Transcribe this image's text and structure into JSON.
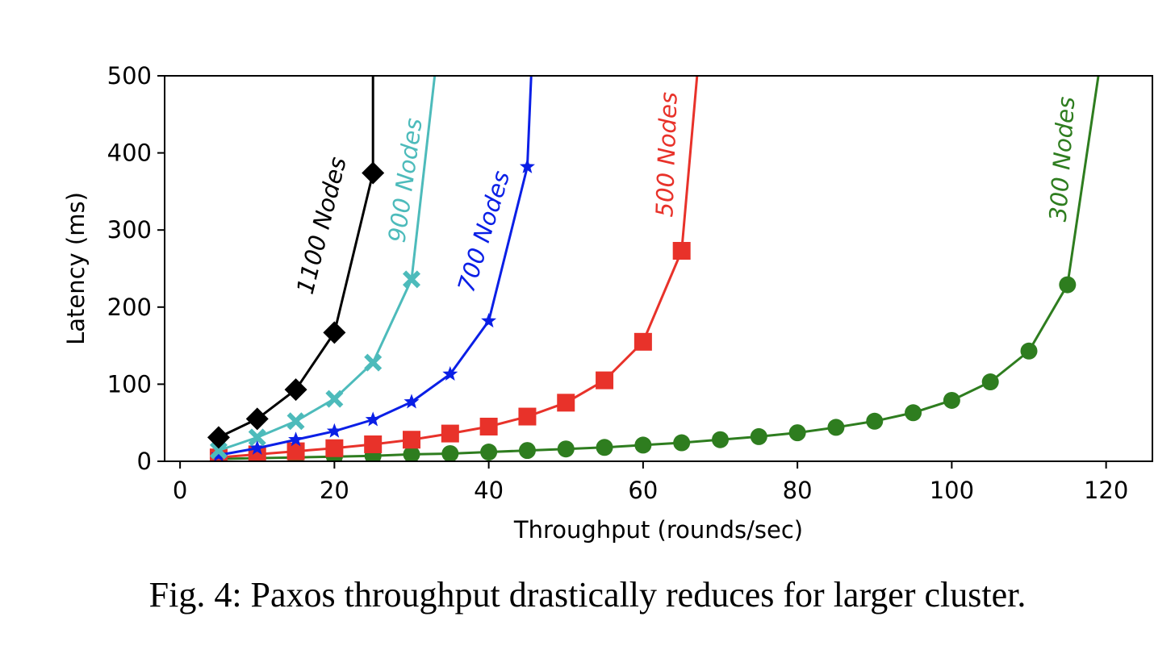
{
  "caption": "Fig. 4: Paxos throughput drastically reduces for larger cluster.",
  "chart_data": {
    "type": "line",
    "xlabel": "Throughput (rounds/sec)",
    "ylabel": "Latency (ms)",
    "xlim": [
      -2,
      126
    ],
    "ylim": [
      0,
      500
    ],
    "xticks": [
      0,
      20,
      40,
      60,
      80,
      100,
      120
    ],
    "yticks": [
      0,
      100,
      200,
      300,
      400,
      500
    ],
    "grid": false,
    "legend": "none",
    "series": [
      {
        "name": "1100 Nodes",
        "color": "#000000",
        "marker": "diamond",
        "x": [
          5,
          10,
          15,
          20,
          25
        ],
        "y": [
          31,
          55,
          93,
          167,
          374
        ],
        "tail": [
          [
            25,
            374
          ],
          [
            25,
            500
          ]
        ]
      },
      {
        "name": "900 Nodes",
        "color": "#4dbbbb",
        "marker": "x",
        "x": [
          5,
          10,
          15,
          20,
          25,
          30
        ],
        "y": [
          14,
          31,
          52,
          81,
          128,
          236
        ],
        "tail": [
          [
            30,
            236
          ],
          [
            33,
            500
          ]
        ]
      },
      {
        "name": "700 Nodes",
        "color": "#0a1fe6",
        "marker": "star",
        "x": [
          5,
          10,
          15,
          20,
          25,
          30,
          35,
          40,
          45
        ],
        "y": [
          8,
          17,
          28,
          39,
          54,
          77,
          113,
          182,
          382
        ],
        "tail": [
          [
            45,
            382
          ],
          [
            45.5,
            500
          ]
        ]
      },
      {
        "name": "500 Nodes",
        "color": "#e8322a",
        "marker": "square",
        "x": [
          5,
          10,
          15,
          20,
          25,
          30,
          35,
          40,
          45,
          50,
          55,
          60,
          65
        ],
        "y": [
          5,
          9,
          13,
          17,
          22,
          28,
          36,
          45,
          58,
          76,
          105,
          155,
          273
        ],
        "tail": [
          [
            65,
            273
          ],
          [
            67,
            500
          ]
        ]
      },
      {
        "name": "300 Nodes",
        "color": "#2e7d1f",
        "marker": "circle",
        "x": [
          5,
          10,
          15,
          20,
          25,
          30,
          35,
          40,
          45,
          50,
          55,
          60,
          65,
          70,
          75,
          80,
          85,
          90,
          95,
          100,
          105,
          110,
          115
        ],
        "y": [
          3,
          4,
          5,
          6,
          7,
          9,
          10,
          12,
          14,
          16,
          18,
          21,
          24,
          28,
          32,
          37,
          44,
          52,
          63,
          79,
          103,
          143,
          229
        ],
        "tail": [
          [
            115,
            229
          ],
          [
            119,
            500
          ]
        ]
      }
    ],
    "annotations": [
      {
        "text": "1100 Nodes",
        "series": 0
      },
      {
        "text": "900 Nodes",
        "series": 1
      },
      {
        "text": "700 Nodes",
        "series": 2
      },
      {
        "text": "500 Nodes",
        "series": 3
      },
      {
        "text": "300 Nodes",
        "series": 4
      }
    ]
  }
}
